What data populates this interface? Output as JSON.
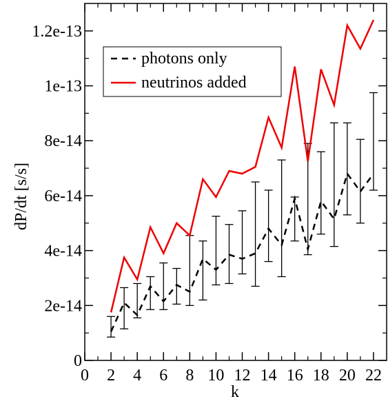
{
  "chart_data": {
    "type": "line",
    "xlabel": "k",
    "ylabel": "dP/dt [s/s]",
    "xlim": [
      0,
      23
    ],
    "ylim": [
      0,
      1.3e-13
    ],
    "x_ticks": [
      0,
      2,
      4,
      6,
      8,
      10,
      12,
      14,
      16,
      18,
      20,
      22
    ],
    "x_tick_labels": [
      "0",
      "2",
      "4",
      "6",
      "8",
      "10",
      "12",
      "14",
      "16",
      "18",
      "20",
      "22"
    ],
    "y_ticks": [
      0,
      2e-14,
      4e-14,
      6e-14,
      8e-14,
      1e-13,
      1.2e-13
    ],
    "y_tick_labels": [
      "0",
      "2e-14",
      "4e-14",
      "6e-14",
      "8e-14",
      "1e-13",
      "1.2e-13"
    ],
    "grid": false,
    "legend_position": "top-left",
    "x": [
      2,
      3,
      4,
      5,
      6,
      7,
      8,
      9,
      10,
      11,
      12,
      13,
      14,
      15,
      16,
      17,
      18,
      19,
      20,
      21,
      22
    ],
    "series": [
      {
        "name": "photons only",
        "color": "#000000",
        "dash": true,
        "values": [
          1.05e-14,
          2.1e-14,
          1.65e-14,
          2.7e-14,
          2.15e-14,
          2.75e-14,
          2.5e-14,
          3.7e-14,
          3.3e-14,
          3.85e-14,
          3.7e-14,
          3.9e-14,
          4.8e-14,
          4.2e-14,
          5.9e-14,
          4.05e-14,
          5.8e-14,
          5.15e-14,
          6.8e-14,
          6.15e-14,
          6.8e-14
        ],
        "err_low": [
          8.5e-15,
          1.15e-14,
          1.55e-14,
          1.85e-14,
          1.85e-14,
          2.05e-14,
          2e-14,
          2.2e-14,
          2.75e-14,
          2.8e-14,
          3.15e-14,
          2.7e-14,
          3.6e-14,
          3.05e-14,
          4.35e-14,
          3.85e-14,
          4.6e-14,
          4.15e-14,
          5.3e-14,
          5e-14,
          6.2e-14
        ],
        "err_high": [
          1.6e-14,
          2.65e-14,
          2.8e-14,
          3.05e-14,
          3.55e-14,
          3.35e-14,
          4.55e-14,
          4.35e-14,
          5.25e-14,
          4.95e-14,
          5.45e-14,
          6.5e-14,
          6.2e-14,
          7.3e-14,
          5.95e-14,
          7.9e-14,
          7.6e-14,
          8.65e-14,
          8.65e-14,
          8.05e-14,
          9.75e-14
        ]
      },
      {
        "name": "neutrinos added",
        "color": "#ee0000",
        "dash": false,
        "values": [
          1.75e-14,
          3.75e-14,
          2.95e-14,
          4.85e-14,
          3.9e-14,
          5e-14,
          4.55e-14,
          6.6e-14,
          5.95e-14,
          6.9e-14,
          6.8e-14,
          7.05e-14,
          8.85e-14,
          7.75e-14,
          1.07e-13,
          7.25e-14,
          1.06e-13,
          9.3e-14,
          1.22e-13,
          1.135e-13,
          1.24e-13
        ]
      }
    ]
  }
}
